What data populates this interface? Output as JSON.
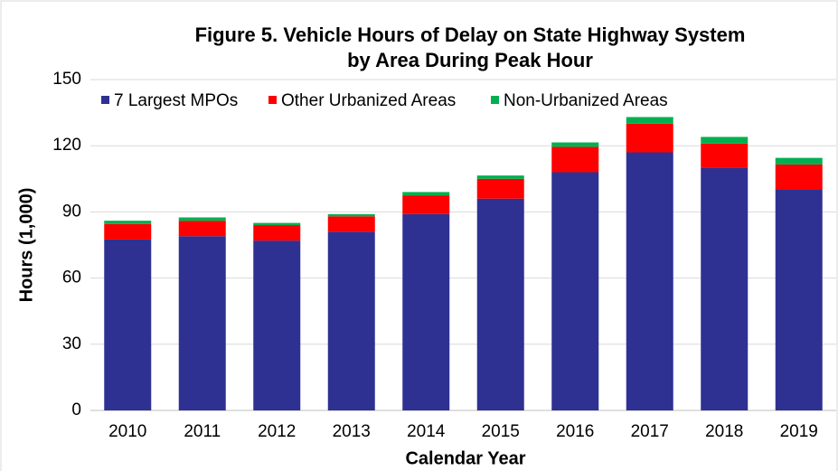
{
  "chart_data": {
    "type": "stacked_bar",
    "title": [
      "Figure 5. Vehicle Hours of Delay on State Highway System",
      "by Area During Peak Hour"
    ],
    "x_label": "Calendar Year",
    "y_label": "Hours (1,000)",
    "categories": [
      "2010",
      "2011",
      "2012",
      "2013",
      "2014",
      "2015",
      "2016",
      "2017",
      "2018",
      "2019"
    ],
    "series": [
      {
        "name": "7 Largest MPOs",
        "color": "#2e3192",
        "values": [
          77.5,
          79,
          77,
          81,
          89,
          96,
          108,
          117,
          110,
          100
        ]
      },
      {
        "name": "Other Urbanized Areas",
        "color": "#ff0000",
        "values": [
          7,
          7,
          7,
          7,
          8.5,
          9,
          11.5,
          13,
          11,
          11.5
        ]
      },
      {
        "name": "Non-Urbanized Areas",
        "color": "#00b050",
        "values": [
          1.5,
          1.5,
          1,
          1,
          1.5,
          1.5,
          2,
          3,
          3,
          3
        ]
      }
    ],
    "ylim": [
      0,
      150
    ],
    "yticks": [
      0,
      30,
      60,
      90,
      120,
      150
    ],
    "grid": true,
    "legend": "top"
  }
}
